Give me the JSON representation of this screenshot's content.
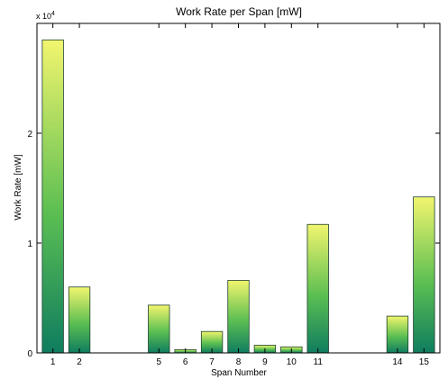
{
  "chart_data": {
    "type": "bar",
    "title": "Work Rate per Span [mW]",
    "xlabel": "Span Number",
    "ylabel": "Work Rate [mW]",
    "y_exponent_label": "x 10",
    "y_exponent_power": "4",
    "x": [
      1,
      2,
      3,
      4,
      5,
      6,
      7,
      8,
      9,
      10,
      11,
      12,
      13,
      14,
      15
    ],
    "x_tick_labels": [
      "1",
      "2",
      "5",
      "6",
      "7",
      "8",
      "9",
      "10",
      "11",
      "14",
      "15"
    ],
    "x_tick_positions": [
      1,
      2,
      5,
      6,
      7,
      8,
      9,
      10,
      11,
      14,
      15
    ],
    "values": [
      28500,
      6000,
      0,
      0,
      4350,
      300,
      1950,
      6600,
      700,
      550,
      11700,
      0,
      0,
      3350,
      14200
    ],
    "y_ticks": [
      0,
      10000,
      20000
    ],
    "y_tick_labels": [
      "0",
      "1",
      "2"
    ],
    "xlim": [
      0.4,
      15.6
    ],
    "ylim": [
      0,
      30000
    ],
    "grid": false,
    "legend": "none",
    "colors": {
      "bar_top": "#f2f56e",
      "bar_mid": "#5cbf52",
      "bar_bottom": "#0f7d5f",
      "bar_stroke": "#1f3f2f",
      "axis": "#000000"
    }
  }
}
